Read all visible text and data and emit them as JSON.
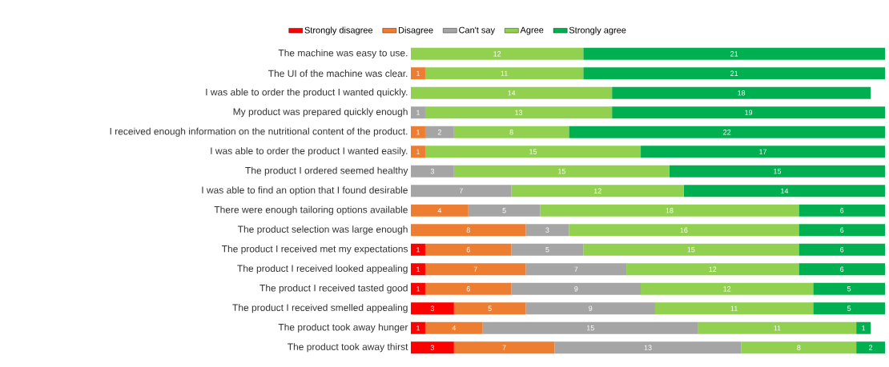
{
  "chart_data": {
    "type": "bar",
    "orientation": "horizontal",
    "stacked": true,
    "data_labels": true,
    "legend": "top",
    "categories": [
      "The machine was easy to use.",
      "The UI of the machine was clear.",
      "I was able to order the product I wanted quickly.",
      "My product was prepared quickly enough",
      "I received enough information on the nutritional content of the product.",
      "I was able to order the product I wanted easily.",
      "The product I ordered seemed healthy",
      "I was able to find an option that I found desirable",
      "There were enough tailoring options available",
      "The product selection was large enough",
      "The product I received met my expectations",
      "The product I received looked appealing",
      "The product I received tasted good",
      "The product I received smelled appealing",
      "The product took away hunger",
      "The product took away thirst"
    ],
    "series": [
      {
        "name": "Strongly disagree",
        "color": "#ff0000",
        "values": [
          null,
          null,
          null,
          null,
          null,
          null,
          null,
          null,
          null,
          null,
          1,
          1,
          1,
          3,
          1,
          3
        ]
      },
      {
        "name": "Disagree",
        "color": "#ed7d31",
        "values": [
          null,
          1,
          null,
          null,
          1,
          1,
          null,
          null,
          4,
          8,
          6,
          7,
          6,
          5,
          4,
          7
        ]
      },
      {
        "name": "Can't say",
        "color": "#a5a5a5",
        "values": [
          null,
          null,
          null,
          1,
          2,
          null,
          3,
          7,
          5,
          3,
          5,
          7,
          9,
          9,
          15,
          13
        ]
      },
      {
        "name": "Agree",
        "color": "#92d050",
        "values": [
          12,
          11,
          14,
          13,
          8,
          15,
          15,
          12,
          18,
          16,
          15,
          12,
          12,
          11,
          11,
          8
        ]
      },
      {
        "name": "Strongly agree",
        "color": "#00b050",
        "values": [
          21,
          21,
          18,
          19,
          22,
          17,
          15,
          14,
          6,
          6,
          6,
          6,
          5,
          5,
          1,
          2
        ]
      }
    ]
  }
}
